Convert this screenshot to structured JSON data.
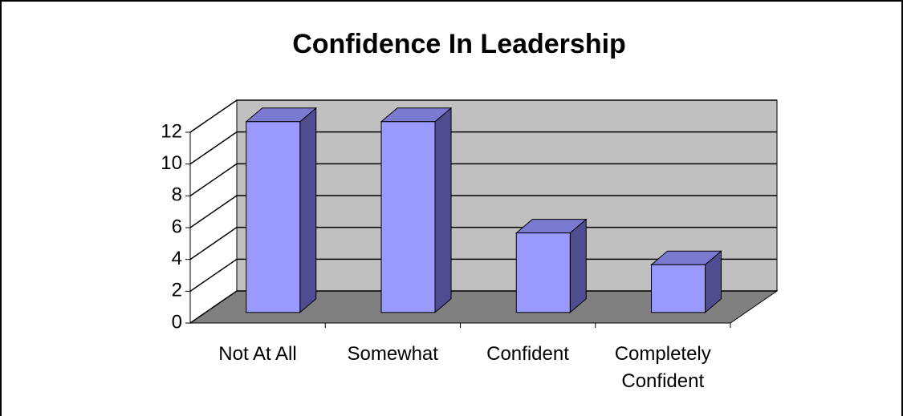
{
  "chart_data": {
    "type": "bar",
    "title": "Confidence In Leadership",
    "categories": [
      "Not At All",
      "Somewhat",
      "Confident",
      "Completely Confident"
    ],
    "values": [
      12,
      12,
      5,
      3
    ],
    "color": "#9999ff",
    "ylim": [
      0,
      12
    ],
    "yticks": [
      0,
      2,
      4,
      6,
      8,
      10,
      12
    ],
    "grid": true
  }
}
